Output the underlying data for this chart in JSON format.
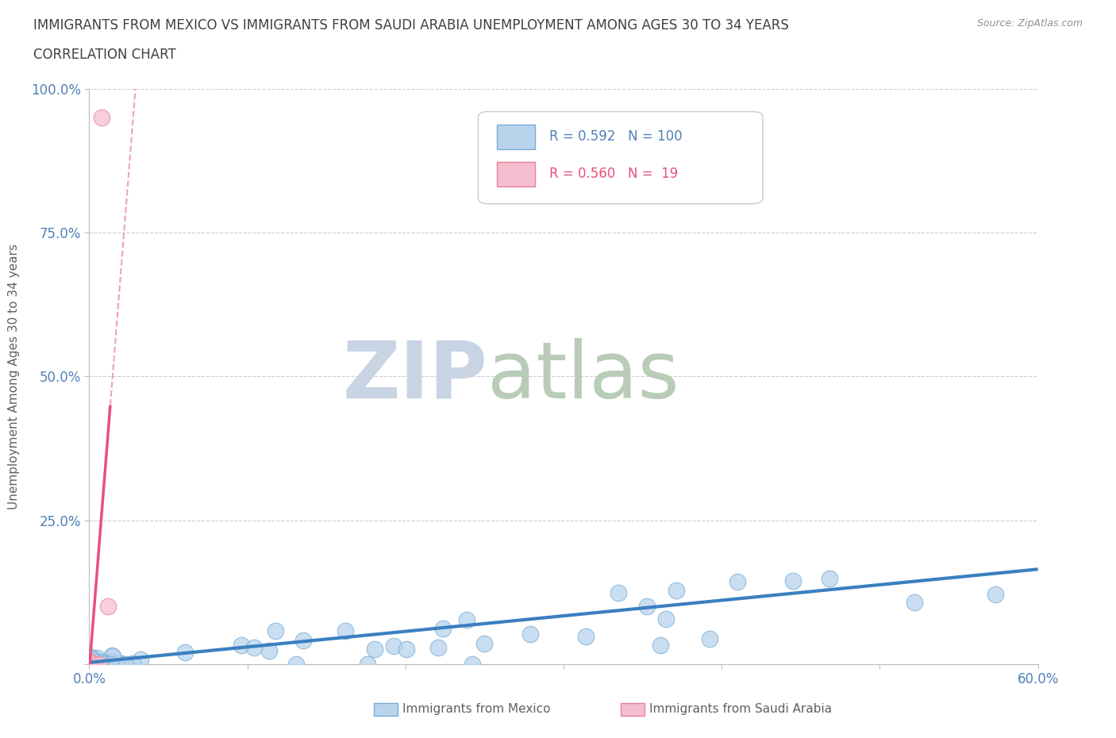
{
  "title_line1": "IMMIGRANTS FROM MEXICO VS IMMIGRANTS FROM SAUDI ARABIA UNEMPLOYMENT AMONG AGES 30 TO 34 YEARS",
  "title_line2": "CORRELATION CHART",
  "source": "Source: ZipAtlas.com",
  "ylabel": "Unemployment Among Ages 30 to 34 years",
  "xlim": [
    0.0,
    0.6
  ],
  "ylim": [
    0.0,
    1.0
  ],
  "xticks": [
    0.0,
    0.1,
    0.2,
    0.3,
    0.4,
    0.5,
    0.6
  ],
  "xticklabels": [
    "0.0%",
    "",
    "",
    "",
    "",
    "",
    "60.0%"
  ],
  "yticks": [
    0.0,
    0.25,
    0.5,
    0.75,
    1.0
  ],
  "yticklabels_right": [
    "",
    "25.0%",
    "50.0%",
    "75.0%",
    "100.0%"
  ],
  "mexico_color": "#b8d4ec",
  "mexico_edge": "#7aadd4",
  "saudi_color": "#f5bece",
  "saudi_edge": "#e8809a",
  "mexico_line_color": "#3a7fc1",
  "saudi_line_color": "#e8507a",
  "saudi_dash_color": "#f0a0c0",
  "watermark_zip": "ZIP",
  "watermark_atlas": "atlas",
  "watermark_color": "#d0dce8",
  "watermark_atlas_color": "#c8d8c8",
  "background_color": "#ffffff",
  "grid_color": "#cccccc",
  "title_color": "#404040",
  "axis_label_color": "#606060",
  "tick_color": "#5080b8",
  "R_mexico": 0.592,
  "N_mexico": 100,
  "R_saudi": 0.56,
  "N_saudi": 19
}
